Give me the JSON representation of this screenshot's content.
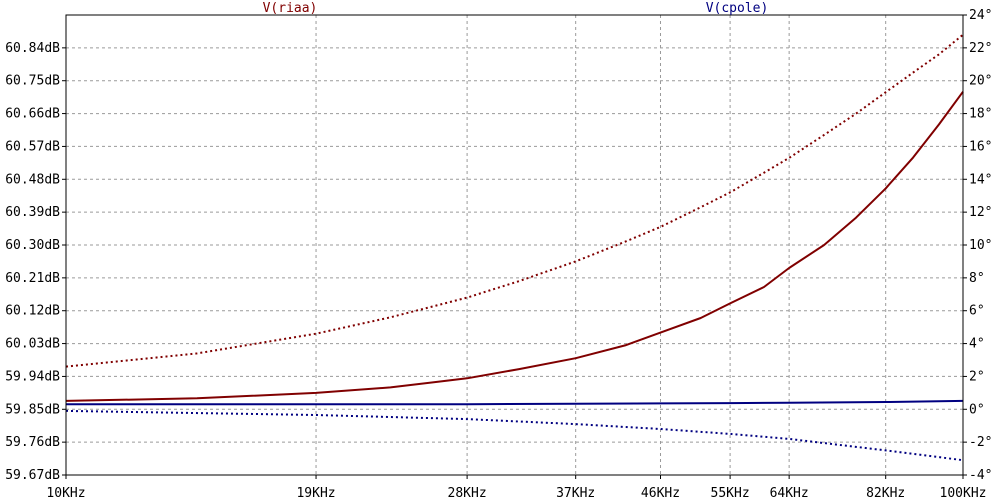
{
  "chart_data": {
    "type": "line",
    "title": "",
    "xlabel": "",
    "ylabel": "",
    "x_scale": "log",
    "xlim": [
      10000,
      100000
    ],
    "x_ticks": [
      10000,
      19000,
      28000,
      37000,
      46000,
      55000,
      64000,
      82000,
      100000
    ],
    "x_tick_labels": [
      "10KHz",
      "19KHz",
      "28KHz",
      "37KHz",
      "46KHz",
      "55KHz",
      "64KHz",
      "82KHz",
      "100KHz"
    ],
    "y_left": {
      "lim": [
        59.67,
        60.93
      ],
      "ticks": [
        59.67,
        59.76,
        59.85,
        59.94,
        60.03,
        60.12,
        60.21,
        60.3,
        60.39,
        60.48,
        60.57,
        60.66,
        60.75,
        60.84
      ],
      "tick_labels": [
        "59.67dB",
        "59.76dB",
        "59.85dB",
        "59.94dB",
        "60.03dB",
        "60.12dB",
        "60.21dB",
        "60.30dB",
        "60.39dB",
        "60.48dB",
        "60.57dB",
        "60.66dB",
        "60.75dB",
        "60.84dB"
      ],
      "unit": "dB"
    },
    "y_right": {
      "lim": [
        -4,
        24
      ],
      "ticks": [
        -4,
        -2,
        0,
        2,
        4,
        6,
        8,
        10,
        12,
        14,
        16,
        18,
        20,
        22,
        24
      ],
      "tick_labels": [
        "-4°",
        "-2°",
        "0°",
        "2°",
        "4°",
        "6°",
        "8°",
        "10°",
        "12°",
        "14°",
        "16°",
        "18°",
        "20°",
        "22°",
        "24°"
      ],
      "unit": "°"
    },
    "grid": true,
    "legend_position": "top",
    "series": [
      {
        "name": "V(riaa)",
        "color": "#800000",
        "magnitude_db": {
          "x": [
            10000,
            14000,
            19000,
            23000,
            28000,
            32000,
            37000,
            42000,
            46000,
            51000,
            55000,
            60000,
            64000,
            70000,
            76000,
            82000,
            88000,
            94000,
            100000
          ],
          "y": [
            59.873,
            59.88,
            59.895,
            59.91,
            59.935,
            59.96,
            59.99,
            60.025,
            60.06,
            60.1,
            60.14,
            60.185,
            60.237,
            60.3,
            60.375,
            60.455,
            60.54,
            60.63,
            60.72
          ]
        },
        "phase_deg": {
          "x": [
            10000,
            14000,
            19000,
            23000,
            28000,
            32000,
            37000,
            42000,
            46000,
            51000,
            55000,
            60000,
            64000,
            70000,
            76000,
            82000,
            88000,
            94000,
            100000
          ],
          "y": [
            2.6,
            3.4,
            4.6,
            5.6,
            6.8,
            7.8,
            9.0,
            10.2,
            11.1,
            12.3,
            13.2,
            14.4,
            15.3,
            16.7,
            18.0,
            19.3,
            20.5,
            21.6,
            22.8
          ]
        }
      },
      {
        "name": "V(cpole)",
        "color": "#000080",
        "magnitude_db": {
          "x": [
            10000,
            19000,
            28000,
            37000,
            46000,
            55000,
            64000,
            82000,
            100000
          ],
          "y": [
            59.864,
            59.864,
            59.864,
            59.865,
            59.866,
            59.867,
            59.868,
            59.87,
            59.873
          ]
        },
        "phase_deg": {
          "x": [
            10000,
            19000,
            28000,
            37000,
            46000,
            55000,
            64000,
            82000,
            100000
          ],
          "y": [
            -0.1,
            -0.35,
            -0.6,
            -0.9,
            -1.2,
            -1.5,
            -1.8,
            -2.5,
            -3.1
          ]
        }
      }
    ]
  }
}
